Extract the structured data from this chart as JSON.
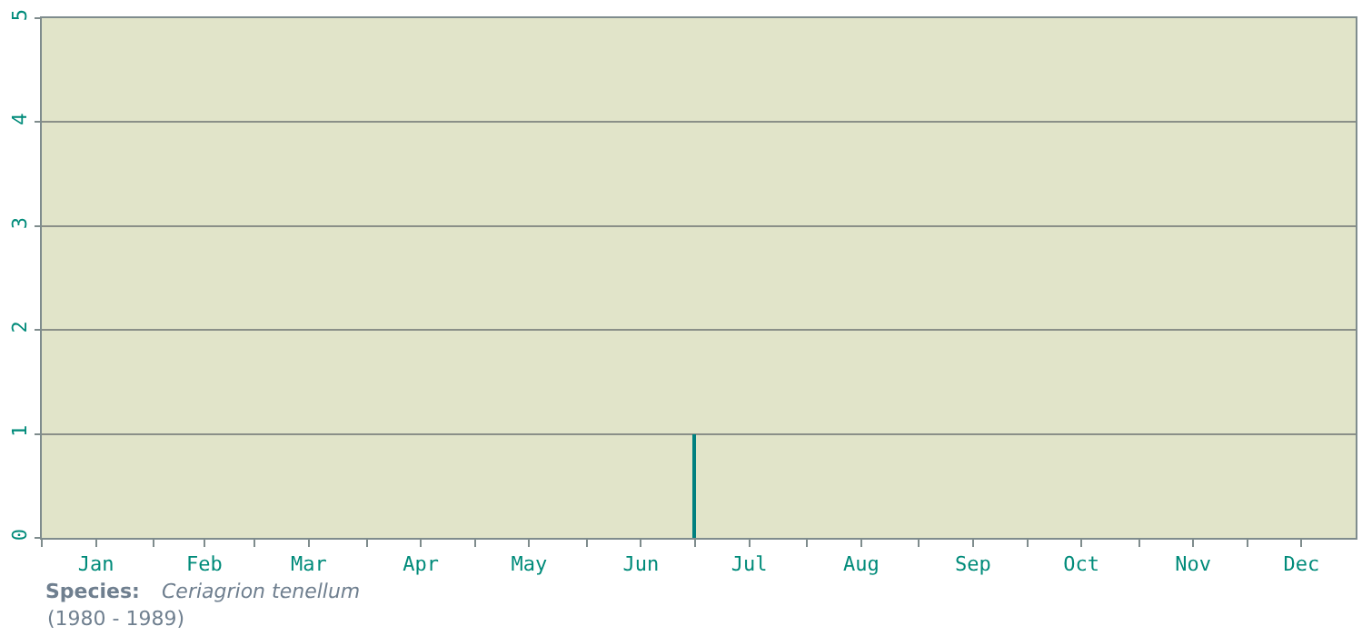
{
  "chart_data": {
    "type": "bar",
    "x": [
      "--07-01"
    ],
    "values": [
      1
    ],
    "color": "#008080",
    "xlim": [
      "--01-01",
      "--12-31"
    ],
    "xticks": [
      {
        "value": "--01-01",
        "label": null
      },
      {
        "value": "--01-16",
        "label": "Jan"
      },
      {
        "value": "--02-01",
        "label": null
      },
      {
        "value": "--02-15",
        "label": "Feb"
      },
      {
        "value": "--03-01",
        "label": null
      },
      {
        "value": "--03-16",
        "label": "Mar"
      },
      {
        "value": "--04-01",
        "label": null
      },
      {
        "value": "--04-16",
        "label": "Apr"
      },
      {
        "value": "--05-01",
        "label": null
      },
      {
        "value": "--05-16",
        "label": "May"
      },
      {
        "value": "--06-01",
        "label": null
      },
      {
        "value": "--06-16",
        "label": "Jun"
      },
      {
        "value": "--07-01",
        "label": null
      },
      {
        "value": "--07-16",
        "label": "Jul"
      },
      {
        "value": "--08-01",
        "label": null
      },
      {
        "value": "--08-16",
        "label": "Aug"
      },
      {
        "value": "--09-01",
        "label": null
      },
      {
        "value": "--09-16",
        "label": "Sep"
      },
      {
        "value": "--10-01",
        "label": null
      },
      {
        "value": "--10-16",
        "label": "Oct"
      },
      {
        "value": "--11-01",
        "label": null
      },
      {
        "value": "--11-16",
        "label": "Nov"
      },
      {
        "value": "--12-01",
        "label": null
      },
      {
        "value": "--12-16",
        "label": "Dec"
      }
    ],
    "ylim": [
      0,
      5
    ],
    "yticks": [
      0,
      1,
      2,
      3,
      4,
      5
    ],
    "grid": "y",
    "legend": false,
    "annotations": [
      "Species:",
      "Ceriagrion tenellum",
      "(1980 - 1989)"
    ]
  }
}
